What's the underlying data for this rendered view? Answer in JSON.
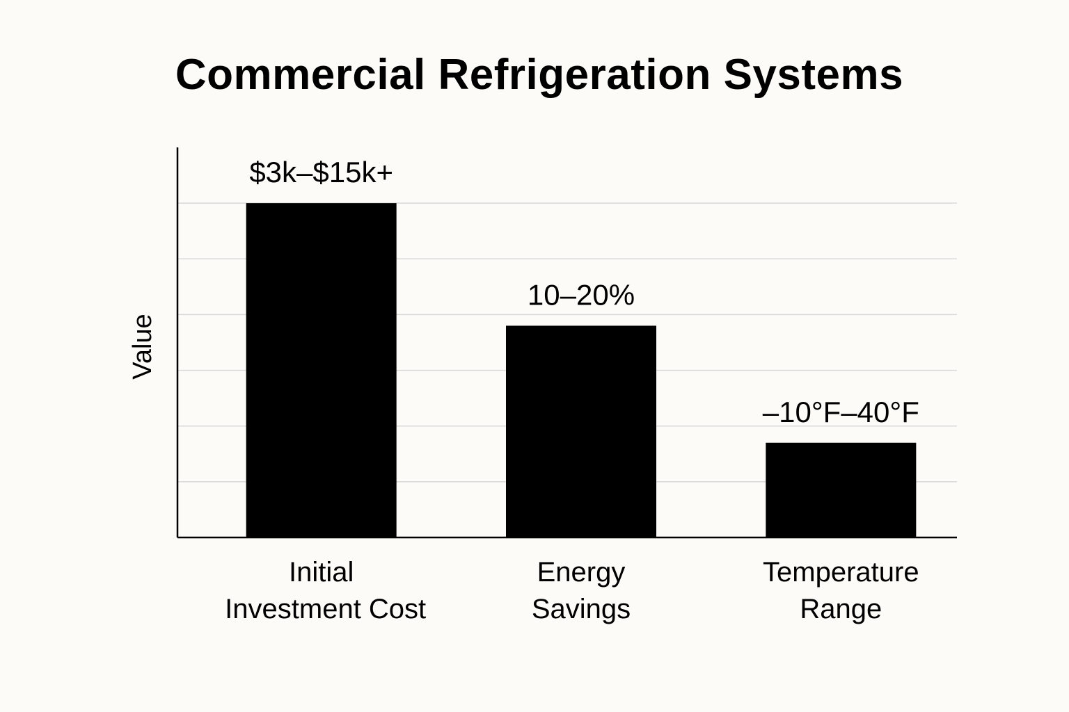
{
  "chart_data": {
    "type": "bar",
    "title": "Commercial Refrigeration Systems",
    "ylabel": "Value",
    "xlabel": "",
    "categories": [
      [
        "Initial",
        "Investment Cost"
      ],
      [
        "Energy",
        "Savings"
      ],
      [
        "Temperature",
        "Range"
      ]
    ],
    "values": [
      6,
      3.8,
      1.7
    ],
    "data_labels": [
      "$3k–$15k+",
      "10–20%",
      "–10°F–40°F"
    ],
    "ylim": [
      0,
      7
    ],
    "yticks": [
      0,
      1,
      2,
      3,
      4,
      5,
      6
    ],
    "y_tick_labels_shown": false,
    "grid": true,
    "legend": "none",
    "bar_color": "#000000",
    "grid_color": "#d8d8d8",
    "background_color": "#fcfbf7"
  }
}
